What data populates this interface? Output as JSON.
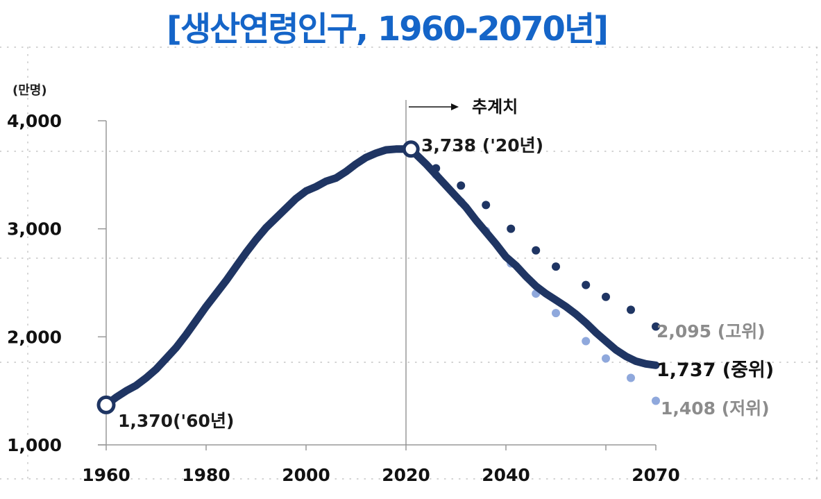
{
  "title": "[생산연령인구, 1960-2070년]",
  "chart_data": {
    "type": "line",
    "unit_label": "(만명)",
    "projection_label": "추계치",
    "ylim": [
      1000,
      4000
    ],
    "y_ticks": [
      {
        "value": 1000,
        "label": "1,000"
      },
      {
        "value": 2000,
        "label": "2,000"
      },
      {
        "value": 3000,
        "label": "3,000"
      },
      {
        "value": 4000,
        "label": "4,000"
      }
    ],
    "x_range": [
      1960,
      2070
    ],
    "x_ticks": [
      {
        "value": 1960,
        "label": "1960"
      },
      {
        "value": 1980,
        "label": "1980"
      },
      {
        "value": 2000,
        "label": "2000"
      },
      {
        "value": 2020,
        "label": "2020"
      },
      {
        "value": 2040,
        "label": "2040"
      },
      {
        "value": 2070,
        "label": "2070"
      }
    ],
    "projection_start": 2020,
    "series": [
      {
        "name": "중위",
        "style": "solid",
        "color": "#1f3563",
        "points": [
          [
            1960,
            1370
          ],
          [
            1962,
            1440
          ],
          [
            1964,
            1500
          ],
          [
            1966,
            1550
          ],
          [
            1968,
            1620
          ],
          [
            1970,
            1700
          ],
          [
            1972,
            1800
          ],
          [
            1974,
            1900
          ],
          [
            1976,
            2020
          ],
          [
            1978,
            2150
          ],
          [
            1980,
            2280
          ],
          [
            1982,
            2400
          ],
          [
            1984,
            2520
          ],
          [
            1986,
            2650
          ],
          [
            1988,
            2780
          ],
          [
            1990,
            2900
          ],
          [
            1992,
            3010
          ],
          [
            1994,
            3100
          ],
          [
            1996,
            3190
          ],
          [
            1998,
            3280
          ],
          [
            2000,
            3350
          ],
          [
            2002,
            3390
          ],
          [
            2004,
            3440
          ],
          [
            2006,
            3470
          ],
          [
            2008,
            3530
          ],
          [
            2010,
            3600
          ],
          [
            2012,
            3660
          ],
          [
            2014,
            3700
          ],
          [
            2016,
            3730
          ],
          [
            2018,
            3738
          ],
          [
            2020,
            3738
          ],
          [
            2022,
            3690
          ],
          [
            2024,
            3600
          ],
          [
            2026,
            3500
          ],
          [
            2028,
            3400
          ],
          [
            2030,
            3300
          ],
          [
            2032,
            3200
          ],
          [
            2034,
            3080
          ],
          [
            2036,
            2970
          ],
          [
            2038,
            2860
          ],
          [
            2040,
            2740
          ],
          [
            2042,
            2660
          ],
          [
            2044,
            2560
          ],
          [
            2046,
            2470
          ],
          [
            2048,
            2400
          ],
          [
            2050,
            2340
          ],
          [
            2052,
            2280
          ],
          [
            2054,
            2210
          ],
          [
            2056,
            2130
          ],
          [
            2058,
            2040
          ],
          [
            2060,
            1960
          ],
          [
            2062,
            1880
          ],
          [
            2064,
            1820
          ],
          [
            2066,
            1775
          ],
          [
            2068,
            1750
          ],
          [
            2070,
            1737
          ]
        ]
      },
      {
        "name": "고위",
        "style": "dotted",
        "color": "#1f3563",
        "points": [
          [
            2020,
            3738
          ],
          [
            2026,
            3560
          ],
          [
            2031,
            3400
          ],
          [
            2036,
            3220
          ],
          [
            2041,
            3000
          ],
          [
            2046,
            2800
          ],
          [
            2050,
            2650
          ],
          [
            2056,
            2480
          ],
          [
            2060,
            2370
          ],
          [
            2065,
            2250
          ],
          [
            2070,
            2095
          ]
        ]
      },
      {
        "name": "저위",
        "style": "dotted",
        "color": "#8fa8dc",
        "points": [
          [
            2020,
            3738
          ],
          [
            2026,
            3500
          ],
          [
            2031,
            3250
          ],
          [
            2036,
            2980
          ],
          [
            2041,
            2680
          ],
          [
            2046,
            2400
          ],
          [
            2050,
            2220
          ],
          [
            2056,
            1960
          ],
          [
            2060,
            1800
          ],
          [
            2065,
            1620
          ],
          [
            2070,
            1408
          ]
        ]
      }
    ],
    "annotations": [
      {
        "text": "3,738 ('20년)",
        "x": 2020,
        "y": 3738,
        "color": "#1a1a1a"
      },
      {
        "text": "1,370('60년)",
        "x": 1960,
        "y": 1370,
        "color": "#1a1a1a"
      },
      {
        "text": "2,095 (고위)",
        "series": "고위",
        "color": "#8c8c8c"
      },
      {
        "text": "1,737 (중위)",
        "series": "중위",
        "color": "#111111"
      },
      {
        "text": "1,408 (저위)",
        "series": "저위",
        "color": "#8c8c8c"
      }
    ]
  }
}
